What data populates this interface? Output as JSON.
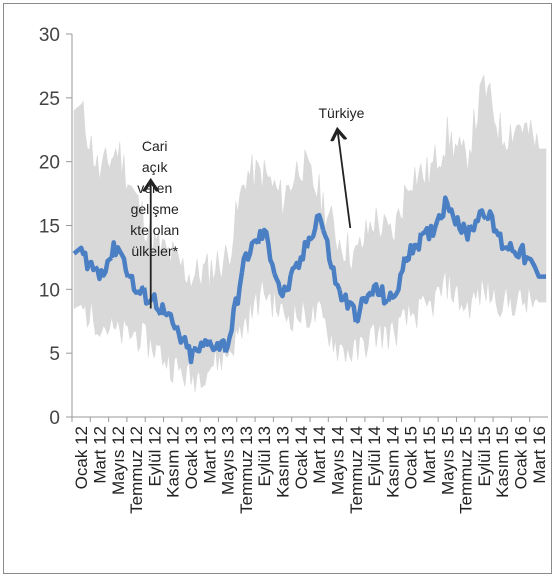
{
  "chart_data": {
    "type": "line",
    "title": "",
    "xlabel": "",
    "ylabel": "",
    "ylim": [
      0,
      30
    ],
    "yticks": [
      0,
      5,
      10,
      15,
      20,
      25,
      30
    ],
    "grid": false,
    "legend": "none",
    "colors": {
      "line": "#4a7fc4",
      "band": "#d9d9d9",
      "axis": "#9a9a9a",
      "annotation": "#222222"
    },
    "x_labels": [
      "Ocak 12",
      "Mart 12",
      "Mayıs 12",
      "Temmuz 12",
      "Eylül 12",
      "Kasım 12",
      "Ocak 13",
      "Mart 13",
      "Mayıs 13",
      "Temmuz 13",
      "Eylül 13",
      "Kasım 13",
      "Ocak 14",
      "Mart 14",
      "Mayıs 14",
      "Temmuz 14",
      "Eylül 14",
      "Kasım 14",
      "Ocak 15",
      "Mart 15",
      "Mayıs 15",
      "Temmuz 15",
      "Eylül 15",
      "Kasım 15",
      "Ocak 16",
      "Mart 16"
    ],
    "series": [
      {
        "role": "line",
        "values": [
          12.8,
          11.2,
          13.5,
          9.8,
          9.2,
          7.2,
          4.8,
          5.8,
          5.6,
          12.6,
          14.5,
          9.4,
          12.2,
          16.0,
          10.0,
          8.0,
          10.0,
          9.0,
          13.4,
          14.2,
          17.0,
          14.2,
          16.4,
          13.6,
          13.0,
          11.0
        ]
      },
      {
        "role": "band_upper",
        "values": [
          24,
          19,
          21,
          17,
          13.5,
          12.5,
          11,
          11.5,
          12.5,
          19,
          19,
          17,
          20,
          17.5,
          14,
          12.5,
          15.5,
          14,
          19,
          19,
          22,
          20,
          26,
          22,
          23,
          21
        ]
      },
      {
        "role": "band_lower",
        "values": [
          8.5,
          7.5,
          6.5,
          6.5,
          5.5,
          4,
          3,
          4,
          5,
          7.5,
          10,
          8,
          8,
          8,
          5.5,
          5,
          6.5,
          6.5,
          8,
          8.5,
          10.5,
          8.5,
          10,
          9,
          9,
          9
        ]
      }
    ],
    "annotations": [
      {
        "lines": [
          "Cari",
          "açık",
          "veren",
          "gelişme",
          "kte olan",
          "ülkeler*"
        ],
        "arrow_from": [
          3.8,
          8.5
        ],
        "arrow_to": [
          3.8,
          18.5
        ]
      },
      {
        "lines": [
          "Türkiye"
        ],
        "arrow_from": [
          14.7,
          14.8
        ],
        "arrow_to": [
          14.0,
          22.5
        ]
      }
    ]
  }
}
